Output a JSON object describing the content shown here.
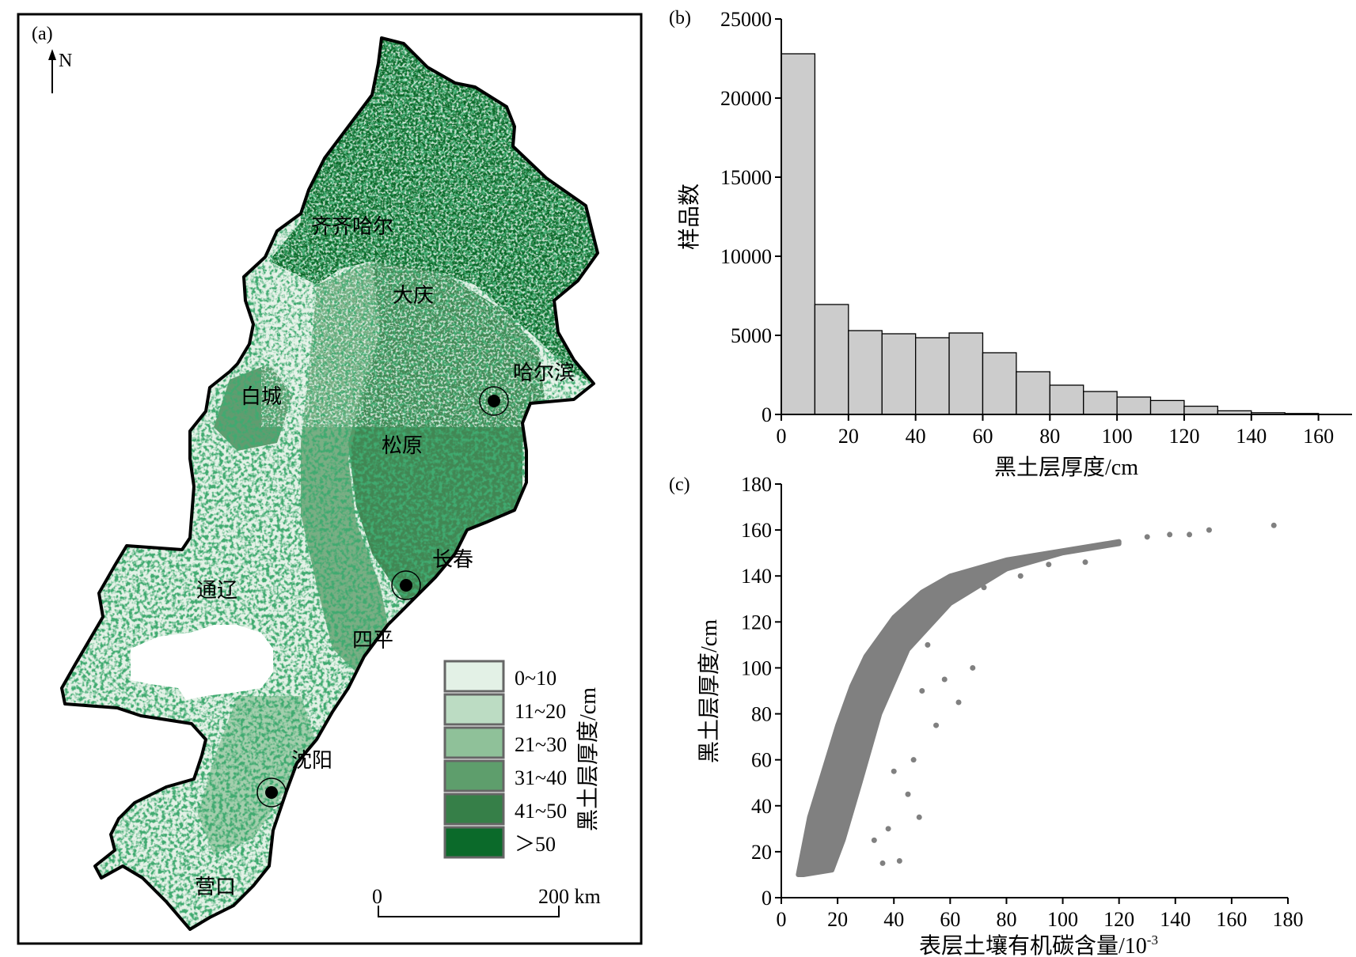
{
  "panel_a": {
    "label": "(a)",
    "north": "N",
    "cities": [
      {
        "name": "齐齐哈尔",
        "marker": false
      },
      {
        "name": "大庆",
        "marker": false
      },
      {
        "name": "哈尔滨",
        "marker": true
      },
      {
        "name": "白城",
        "marker": false
      },
      {
        "name": "松原",
        "marker": false
      },
      {
        "name": "长春",
        "marker": true
      },
      {
        "name": "通辽",
        "marker": false
      },
      {
        "name": "四平",
        "marker": false
      },
      {
        "name": "沈阳",
        "marker": true
      },
      {
        "name": "营口",
        "marker": false
      }
    ],
    "legend": {
      "title": "黑土层厚度/cm",
      "classes": [
        {
          "label": "0~10",
          "color": "#e3f1e6"
        },
        {
          "label": "11~20",
          "color": "#bcdcc3"
        },
        {
          "label": "21~30",
          "color": "#8fc199"
        },
        {
          "label": "31~40",
          "color": "#5e9e6c"
        },
        {
          "label": "41~50",
          "color": "#367f48"
        },
        {
          "label": "＞50",
          "color": "#0b6a2a"
        }
      ]
    },
    "scale": {
      "start": "0",
      "end": "200 km"
    }
  },
  "chart_data": [
    {
      "panel": "(b)",
      "type": "bar",
      "bins": [
        [
          0,
          10
        ],
        [
          10,
          20
        ],
        [
          20,
          30
        ],
        [
          30,
          40
        ],
        [
          40,
          50
        ],
        [
          50,
          60
        ],
        [
          60,
          70
        ],
        [
          70,
          80
        ],
        [
          80,
          90
        ],
        [
          90,
          100
        ],
        [
          100,
          110
        ],
        [
          110,
          120
        ],
        [
          120,
          130
        ],
        [
          130,
          140
        ],
        [
          140,
          150
        ],
        [
          150,
          160
        ]
      ],
      "values": [
        22800,
        6950,
        5300,
        5100,
        4850,
        5150,
        3900,
        2700,
        1850,
        1450,
        1100,
        880,
        520,
        230,
        110,
        60
      ],
      "xlabel": "黑土层厚度/cm",
      "ylabel": "样品数",
      "xlim": [
        0,
        170
      ],
      "ylim": [
        0,
        25000
      ],
      "xticks": [
        "0",
        "20",
        "40",
        "60",
        "80",
        "100",
        "120",
        "140",
        "160"
      ],
      "yticks": [
        "0",
        "5000",
        "10000",
        "15000",
        "20000",
        "25000"
      ],
      "bar_color": "#cccccc"
    },
    {
      "panel": "(c)",
      "type": "scatter",
      "xlabel": "表层土壤有机碳含量/10",
      "xlabel_sup": "-3",
      "ylabel": "黑土层厚度/cm",
      "xlim": [
        0,
        180
      ],
      "ylim": [
        0,
        180
      ],
      "xticks": [
        "0",
        "20",
        "40",
        "60",
        "80",
        "100",
        "120",
        "140",
        "160",
        "180"
      ],
      "yticks": [
        "0",
        "20",
        "40",
        "60",
        "80",
        "100",
        "120",
        "140",
        "160",
        "180"
      ],
      "point_color": "#808080",
      "upper_envelope": [
        [
          6,
          10
        ],
        [
          10,
          35
        ],
        [
          15,
          55
        ],
        [
          20,
          75
        ],
        [
          25,
          92
        ],
        [
          30,
          105
        ],
        [
          40,
          122
        ],
        [
          50,
          133
        ],
        [
          60,
          140
        ],
        [
          80,
          147
        ],
        [
          100,
          151
        ],
        [
          120,
          155
        ]
      ],
      "lower_envelope": [
        [
          8,
          10
        ],
        [
          18,
          12
        ],
        [
          22,
          25
        ],
        [
          28,
          50
        ],
        [
          35,
          80
        ],
        [
          45,
          108
        ],
        [
          60,
          128
        ],
        [
          80,
          143
        ],
        [
          100,
          150
        ],
        [
          120,
          154
        ]
      ],
      "outliers": [
        [
          130,
          157
        ],
        [
          138,
          158
        ],
        [
          145,
          158
        ],
        [
          152,
          160
        ],
        [
          175,
          162
        ],
        [
          72,
          135
        ],
        [
          40,
          55
        ],
        [
          45,
          45
        ],
        [
          49,
          35
        ],
        [
          36,
          15
        ],
        [
          42,
          16
        ],
        [
          63,
          85
        ],
        [
          58,
          95
        ],
        [
          68,
          100
        ],
        [
          50,
          90
        ],
        [
          55,
          75
        ],
        [
          47,
          60
        ],
        [
          95,
          145
        ],
        [
          108,
          146
        ],
        [
          85,
          140
        ],
        [
          33,
          25
        ],
        [
          38,
          30
        ],
        [
          52,
          110
        ]
      ]
    }
  ]
}
